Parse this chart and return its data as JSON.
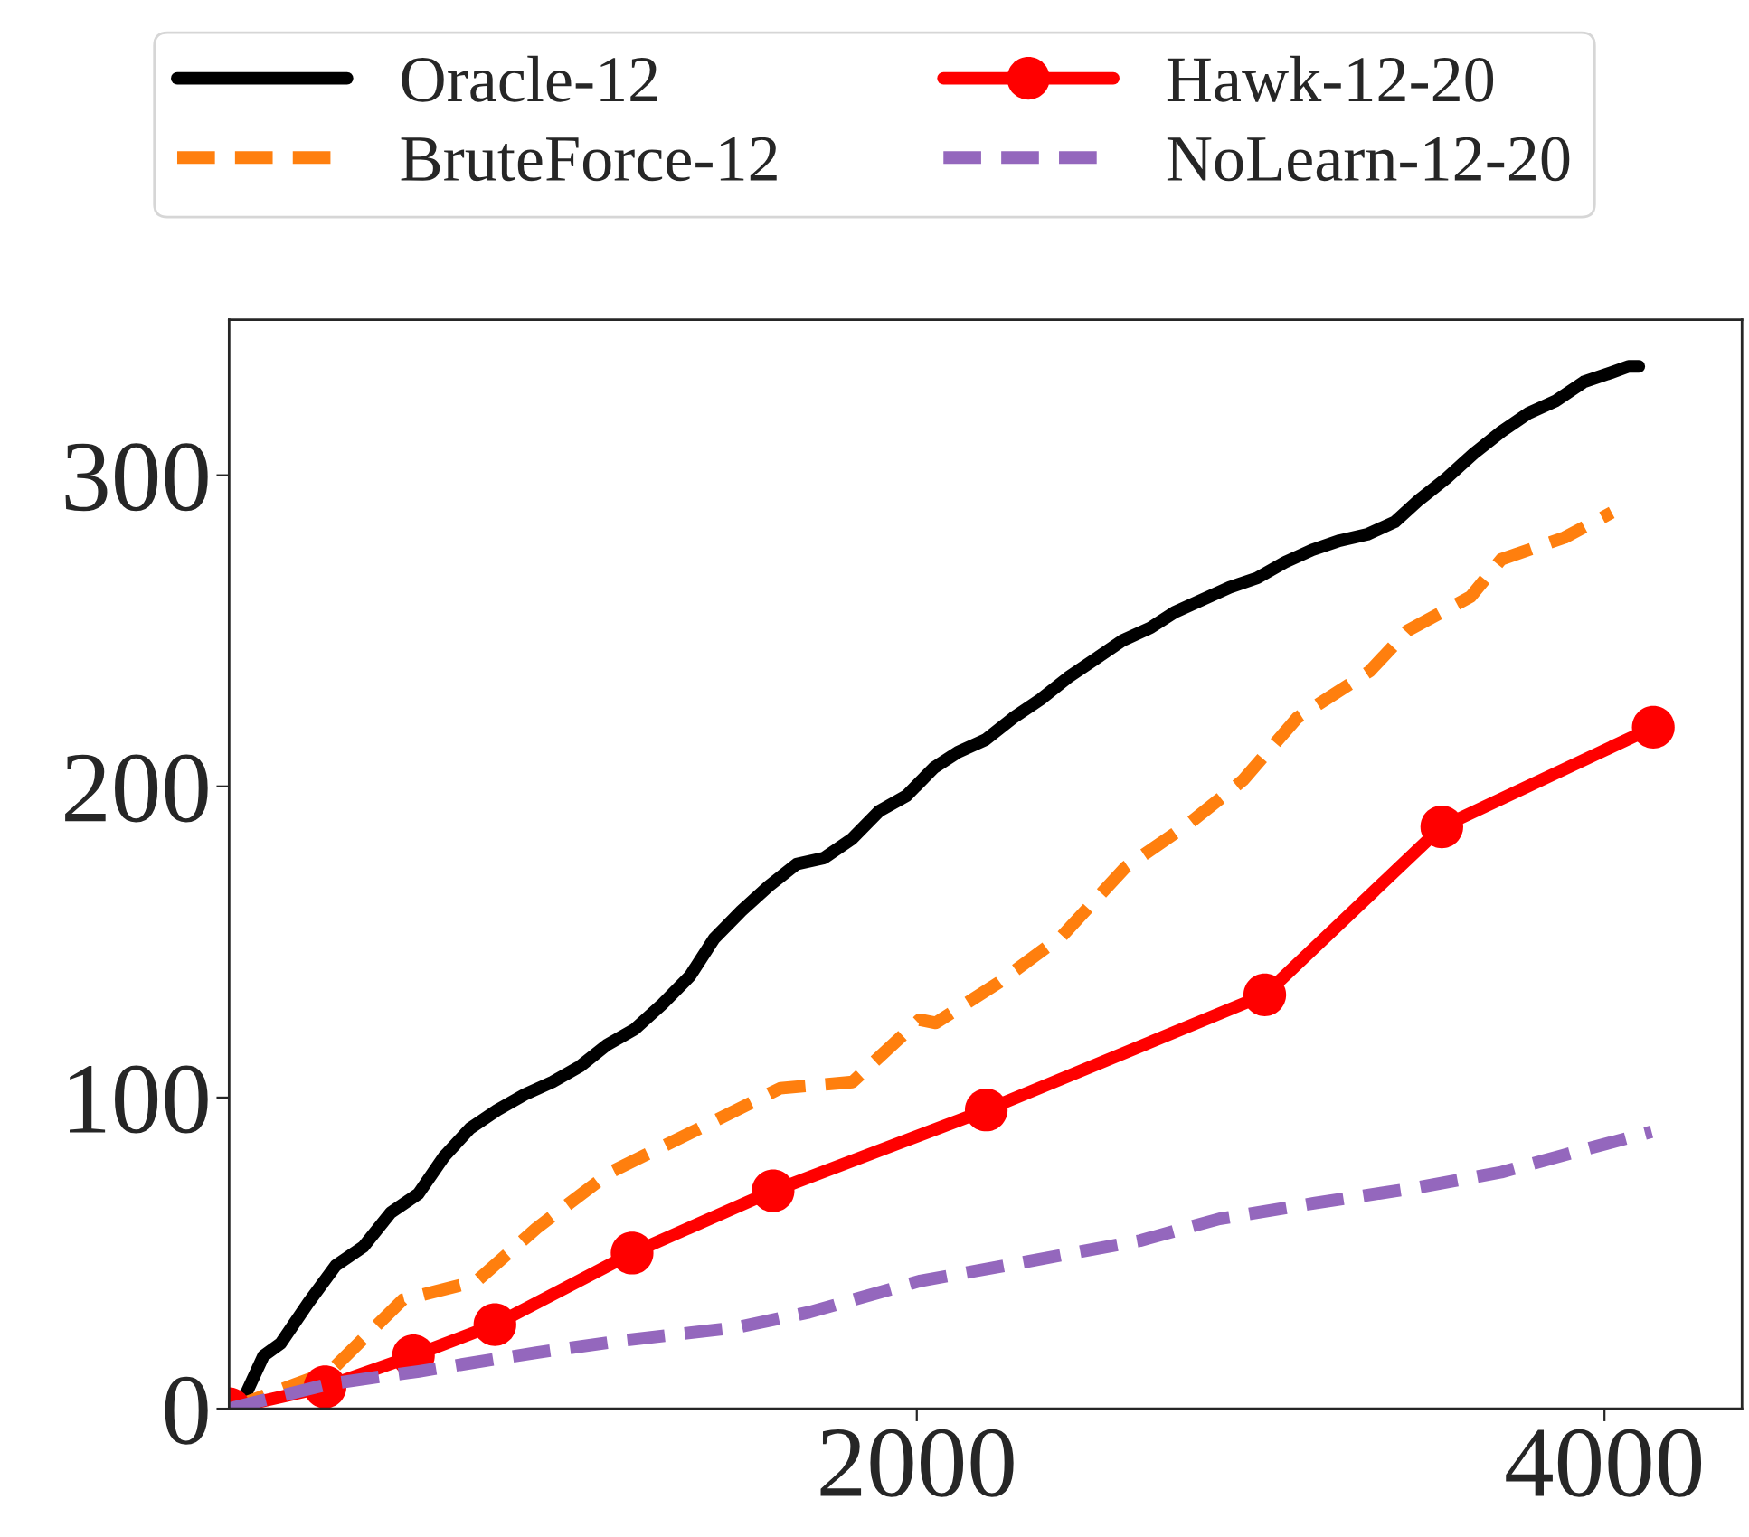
{
  "chart_data": {
    "type": "line",
    "xlim": [
      0,
      4400
    ],
    "ylim": [
      0,
      350
    ],
    "xticks": [
      2000,
      4000
    ],
    "yticks": [
      0,
      100,
      200,
      300
    ],
    "grid": false,
    "legend": "top",
    "series": [
      {
        "name": "Oracle-12",
        "color": "#000000",
        "line_style": "solid",
        "marker": "none",
        "x": [
          0,
          50,
          100,
          150,
          230,
          310,
          390,
          470,
          550,
          625,
          700,
          780,
          860,
          940,
          1020,
          1100,
          1180,
          1260,
          1340,
          1410,
          1490,
          1570,
          1650,
          1730,
          1810,
          1890,
          1970,
          2050,
          2120,
          2200,
          2280,
          2360,
          2440,
          2520,
          2600,
          2680,
          2750,
          2830,
          2910,
          2990,
          3070,
          3150,
          3230,
          3310,
          3390,
          3460,
          3540,
          3620,
          3700,
          3780,
          3860,
          3940,
          4020,
          4070,
          4100
        ],
        "values": [
          0,
          5,
          17,
          21,
          34,
          46,
          52,
          63,
          69,
          81,
          90,
          96,
          101,
          105,
          110,
          117,
          122,
          130,
          139,
          151,
          160,
          168,
          175,
          177,
          183,
          192,
          197,
          206,
          211,
          215,
          222,
          228,
          235,
          241,
          247,
          251,
          256,
          260,
          264,
          267,
          272,
          276,
          279,
          281,
          285,
          292,
          299,
          307,
          314,
          320,
          324,
          330,
          333,
          335,
          335
        ]
      },
      {
        "name": "BruteForce-12",
        "color": "#ff7f0e",
        "line_style": "dashed",
        "marker": "none",
        "x": [
          0,
          294,
          505,
          720,
          894,
          1109,
          1367,
          1603,
          1813,
          2008,
          2055,
          2239,
          2423,
          2607,
          2791,
          2949,
          3106,
          3317,
          3427,
          3611,
          3700,
          3884,
          4021
        ],
        "values": [
          0,
          12,
          35,
          41,
          58,
          76,
          90,
          103,
          105,
          125,
          124,
          137,
          152,
          174,
          188,
          202,
          222,
          237,
          250,
          261,
          273,
          280,
          288
        ]
      },
      {
        "name": "Hawk-12-20",
        "color": "#ff0000",
        "line_style": "solid",
        "marker": "circle",
        "x": [
          0,
          279,
          536,
          773,
          1172,
          1582,
          2202,
          3012,
          3527,
          4142
        ],
        "values": [
          0,
          7,
          17,
          27,
          50,
          70,
          96,
          133,
          187,
          219
        ]
      },
      {
        "name": "NoLearn-12-20",
        "color": "#9467bd",
        "line_style": "dashed",
        "marker": "none",
        "x": [
          0,
          294,
          552,
          894,
          1151,
          1472,
          1687,
          2008,
          2307,
          2649,
          2880,
          3154,
          3453,
          3700,
          3932,
          4137
        ],
        "values": [
          0,
          8,
          12,
          18,
          22,
          26,
          31,
          41,
          47,
          54,
          61,
          66,
          71,
          76,
          83,
          89
        ]
      }
    ]
  }
}
